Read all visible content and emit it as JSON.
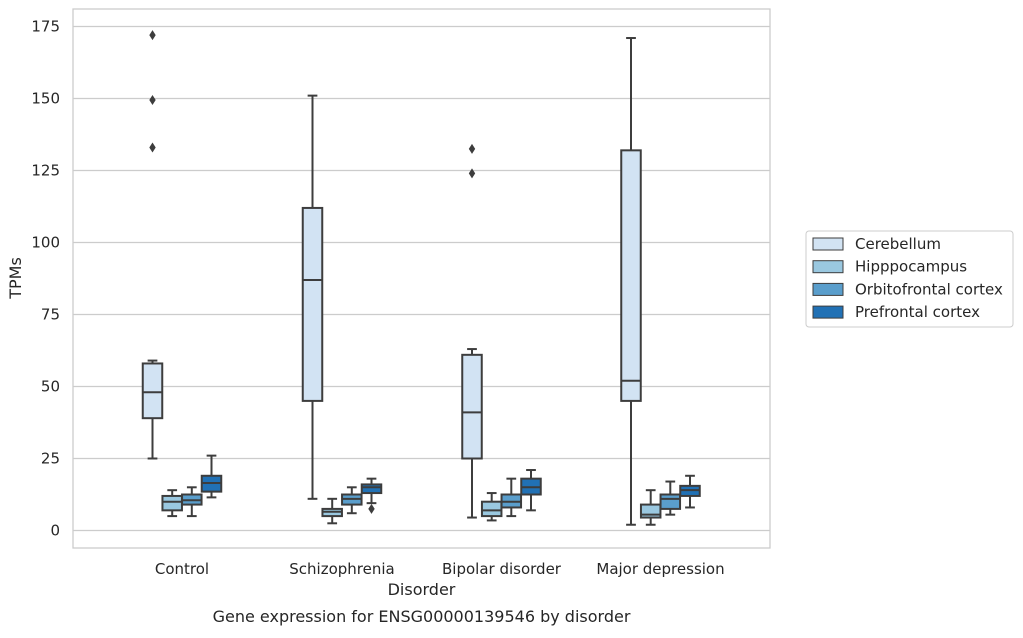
{
  "chart_data": {
    "type": "boxplot",
    "caption": "Gene expression for ENSG00000139546 by disorder",
    "xlabel": "Disorder",
    "ylabel": "TPMs",
    "ylim": [
      -6,
      181
    ],
    "yticks": [
      0,
      25,
      50,
      75,
      100,
      125,
      150,
      175
    ],
    "grid": "horizontal",
    "legend_position": "right",
    "categories": [
      "Control",
      "Schizophrenia",
      "Bipolar disorder",
      "Major depression"
    ],
    "series": [
      {
        "name": "Cerebellum",
        "color": "#d2e3f3",
        "boxes": [
          {
            "whisker_low": 25,
            "q1": 39,
            "median": 48,
            "q3": 58,
            "whisker_high": 59,
            "outliers": [
              133,
              149.5,
              172
            ]
          },
          {
            "whisker_low": 11,
            "q1": 45,
            "median": 87,
            "q3": 112,
            "whisker_high": 151,
            "outliers": []
          },
          {
            "whisker_low": 4.5,
            "q1": 25,
            "median": 41,
            "q3": 61,
            "whisker_high": 63,
            "outliers": [
              124,
              132.5
            ]
          },
          {
            "whisker_low": 2,
            "q1": 45,
            "median": 52,
            "q3": 132,
            "whisker_high": 171,
            "outliers": []
          }
        ]
      },
      {
        "name": "Hipppocampus",
        "color": "#9ac8e0",
        "boxes": [
          {
            "whisker_low": 5,
            "q1": 7,
            "median": 10,
            "q3": 12,
            "whisker_high": 14,
            "outliers": []
          },
          {
            "whisker_low": 2.5,
            "q1": 5,
            "median": 6.5,
            "q3": 7.5,
            "whisker_high": 11,
            "outliers": []
          },
          {
            "whisker_low": 3.5,
            "q1": 5,
            "median": 7,
            "q3": 10,
            "whisker_high": 13,
            "outliers": []
          },
          {
            "whisker_low": 2,
            "q1": 4.5,
            "median": 5.5,
            "q3": 9,
            "whisker_high": 14,
            "outliers": []
          }
        ]
      },
      {
        "name": "Orbitofrontal cortex",
        "color": "#5a9ecc",
        "boxes": [
          {
            "whisker_low": 5,
            "q1": 9,
            "median": 10.5,
            "q3": 12.5,
            "whisker_high": 15,
            "outliers": []
          },
          {
            "whisker_low": 6,
            "q1": 9,
            "median": 11,
            "q3": 12.5,
            "whisker_high": 15,
            "outliers": []
          },
          {
            "whisker_low": 5,
            "q1": 8,
            "median": 10,
            "q3": 12.5,
            "whisker_high": 18,
            "outliers": []
          },
          {
            "whisker_low": 5.5,
            "q1": 7.5,
            "median": 11,
            "q3": 12.5,
            "whisker_high": 17,
            "outliers": []
          }
        ]
      },
      {
        "name": "Prefrontal cortex",
        "color": "#2171b5",
        "boxes": [
          {
            "whisker_low": 11.5,
            "q1": 13.5,
            "median": 16.5,
            "q3": 19,
            "whisker_high": 26,
            "outliers": []
          },
          {
            "whisker_low": 9.5,
            "q1": 13,
            "median": 15,
            "q3": 16,
            "whisker_high": 18,
            "outliers": [
              7.5
            ]
          },
          {
            "whisker_low": 7,
            "q1": 12.5,
            "median": 15,
            "q3": 18,
            "whisker_high": 21,
            "outliers": []
          },
          {
            "whisker_low": 8,
            "q1": 12,
            "median": 14,
            "q3": 15.5,
            "whisker_high": 19,
            "outliers": []
          }
        ]
      }
    ]
  }
}
